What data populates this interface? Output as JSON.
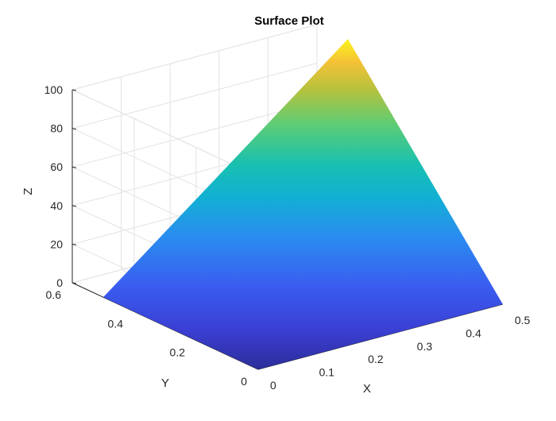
{
  "chart_data": {
    "type": "surface",
    "title": "Surface Plot",
    "xlabel": "X",
    "ylabel": "Y",
    "zlabel": "Z",
    "xlim": [
      0,
      0.5
    ],
    "ylim": [
      0,
      0.6
    ],
    "zlim": [
      0,
      100
    ],
    "x_ticks": [
      0,
      0.1,
      0.2,
      0.3,
      0.4,
      0.5
    ],
    "y_ticks": [
      0,
      0.2,
      0.4,
      0.6
    ],
    "z_ticks": [
      0,
      20,
      40,
      60,
      80,
      100
    ],
    "x_tick_labels": [
      "0",
      "0.1",
      "0.2",
      "0.3",
      "0.4",
      "0.5"
    ],
    "y_tick_labels": [
      "0",
      "0.2",
      "0.4",
      "0.6"
    ],
    "z_tick_labels": [
      "0",
      "20",
      "40",
      "60",
      "80",
      "100"
    ],
    "surface_vertices": [
      {
        "name": "origin",
        "x": 0,
        "y": 0,
        "z": 0
      },
      {
        "name": "x-end",
        "x": 0.5,
        "y": 0,
        "z": 0
      },
      {
        "name": "y-end",
        "x": 0,
        "y": 0.5,
        "z": 0
      },
      {
        "name": "peak",
        "x": 0.5,
        "y": 0.5,
        "z": 100
      }
    ],
    "colormap": "parula",
    "grid": true
  }
}
